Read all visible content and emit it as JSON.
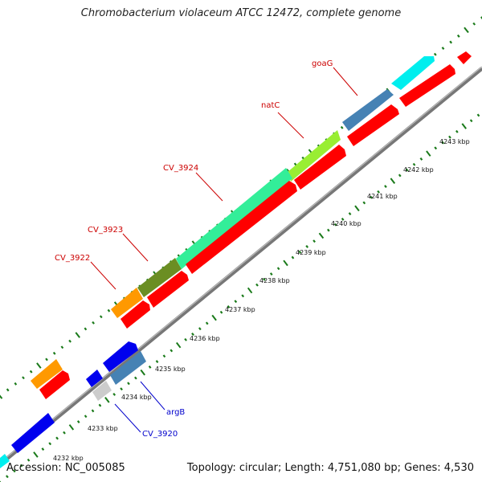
{
  "title": "Chromobacterium violaceum ATCC 12472, complete genome",
  "footer": {
    "accession": "Accession: NC_005085",
    "summary": "Topology: circular; Length: 4,751,080 bp; Genes: 4,530"
  },
  "colors": {
    "backbone": "#777777",
    "reverse_cds": "#ff0000",
    "forward_gene_label": "#cc0000",
    "reverse_gene_label": "#0000cc",
    "tick": "#1a7a1a",
    "orange": "#ff9900",
    "olive": "#6b8e23",
    "seagreen": "#33ee99",
    "lime": "#99ee33",
    "steelblue": "#4682b4",
    "cyan": "#00eeee",
    "blue": "#0000ee",
    "gray": "#cccccc"
  },
  "ticks": [
    {
      "label": "4233 kbp"
    },
    {
      "label": "4234 kbp"
    },
    {
      "label": "4235 kbp"
    },
    {
      "label": "4236 kbp"
    },
    {
      "label": "4237 kbp"
    },
    {
      "label": "4238 kbp"
    },
    {
      "label": "4239 kbp"
    },
    {
      "label": "4240 kbp"
    },
    {
      "label": "4241 kbp"
    },
    {
      "label": "4242 kbp"
    },
    {
      "label": "4243 kbp"
    },
    {
      "label": "4232 kbp"
    }
  ],
  "gene_labels": {
    "goaG": "goaG",
    "natC": "natC",
    "CV_3924": "CV_3924",
    "CV_3923": "CV_3923",
    "CV_3922": "CV_3922",
    "argB": "argB",
    "CV_3920": "CV_3920"
  }
}
